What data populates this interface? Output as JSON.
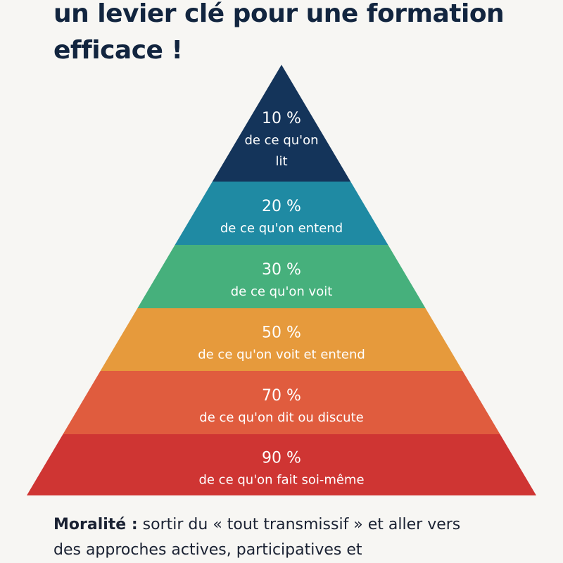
{
  "title": {
    "line1": "un levier clé pour une formation",
    "line2": "efficace !"
  },
  "pyramid": {
    "tiers": [
      {
        "percent": "10 %",
        "lines": [
          "de ce qu'on",
          "lit"
        ],
        "value": 10,
        "color": "#14345a"
      },
      {
        "percent": "20 %",
        "lines": [
          "de ce qu'on entend"
        ],
        "value": 20,
        "color": "#1f8aa3"
      },
      {
        "percent": "30 %",
        "lines": [
          "de ce qu'on voit"
        ],
        "value": 30,
        "color": "#46b07c"
      },
      {
        "percent": "50 %",
        "lines": [
          "de ce qu'on voit et entend"
        ],
        "value": 50,
        "color": "#e69a3c"
      },
      {
        "percent": "70 %",
        "lines": [
          "de ce qu'on dit ou discute"
        ],
        "value": 70,
        "color": "#e05c3e"
      },
      {
        "percent": "90 %",
        "lines": [
          "de ce qu'on fait soi-même"
        ],
        "value": 90,
        "color": "#cf3533"
      }
    ]
  },
  "morale": {
    "label": "Moralité :",
    "text": " sortir du « tout transmissif » et aller vers",
    "line2": "des approches actives, participatives et"
  }
}
